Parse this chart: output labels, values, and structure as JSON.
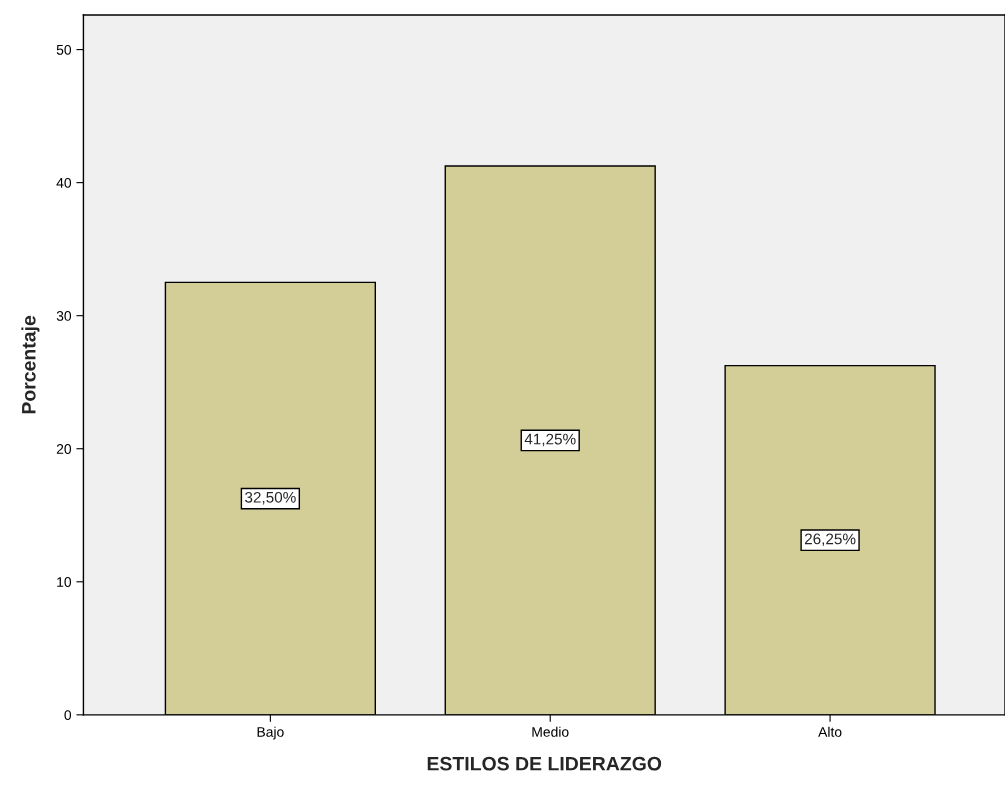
{
  "chart_data": {
    "type": "bar",
    "xlabel": "ESTILOS DE LIDERAZGO",
    "ylabel": "Porcentaje",
    "categories": [
      "Bajo",
      "Medio",
      "Alto"
    ],
    "values": [
      32.5,
      41.25,
      26.25
    ],
    "value_labels": [
      "32,50%",
      "41,25%",
      "26,25%"
    ],
    "color": "#d3ce97",
    "ylim": [
      0,
      52.6
    ],
    "yticks": [
      0,
      10,
      20,
      30,
      40,
      50
    ],
    "grid": false,
    "legend": false
  }
}
